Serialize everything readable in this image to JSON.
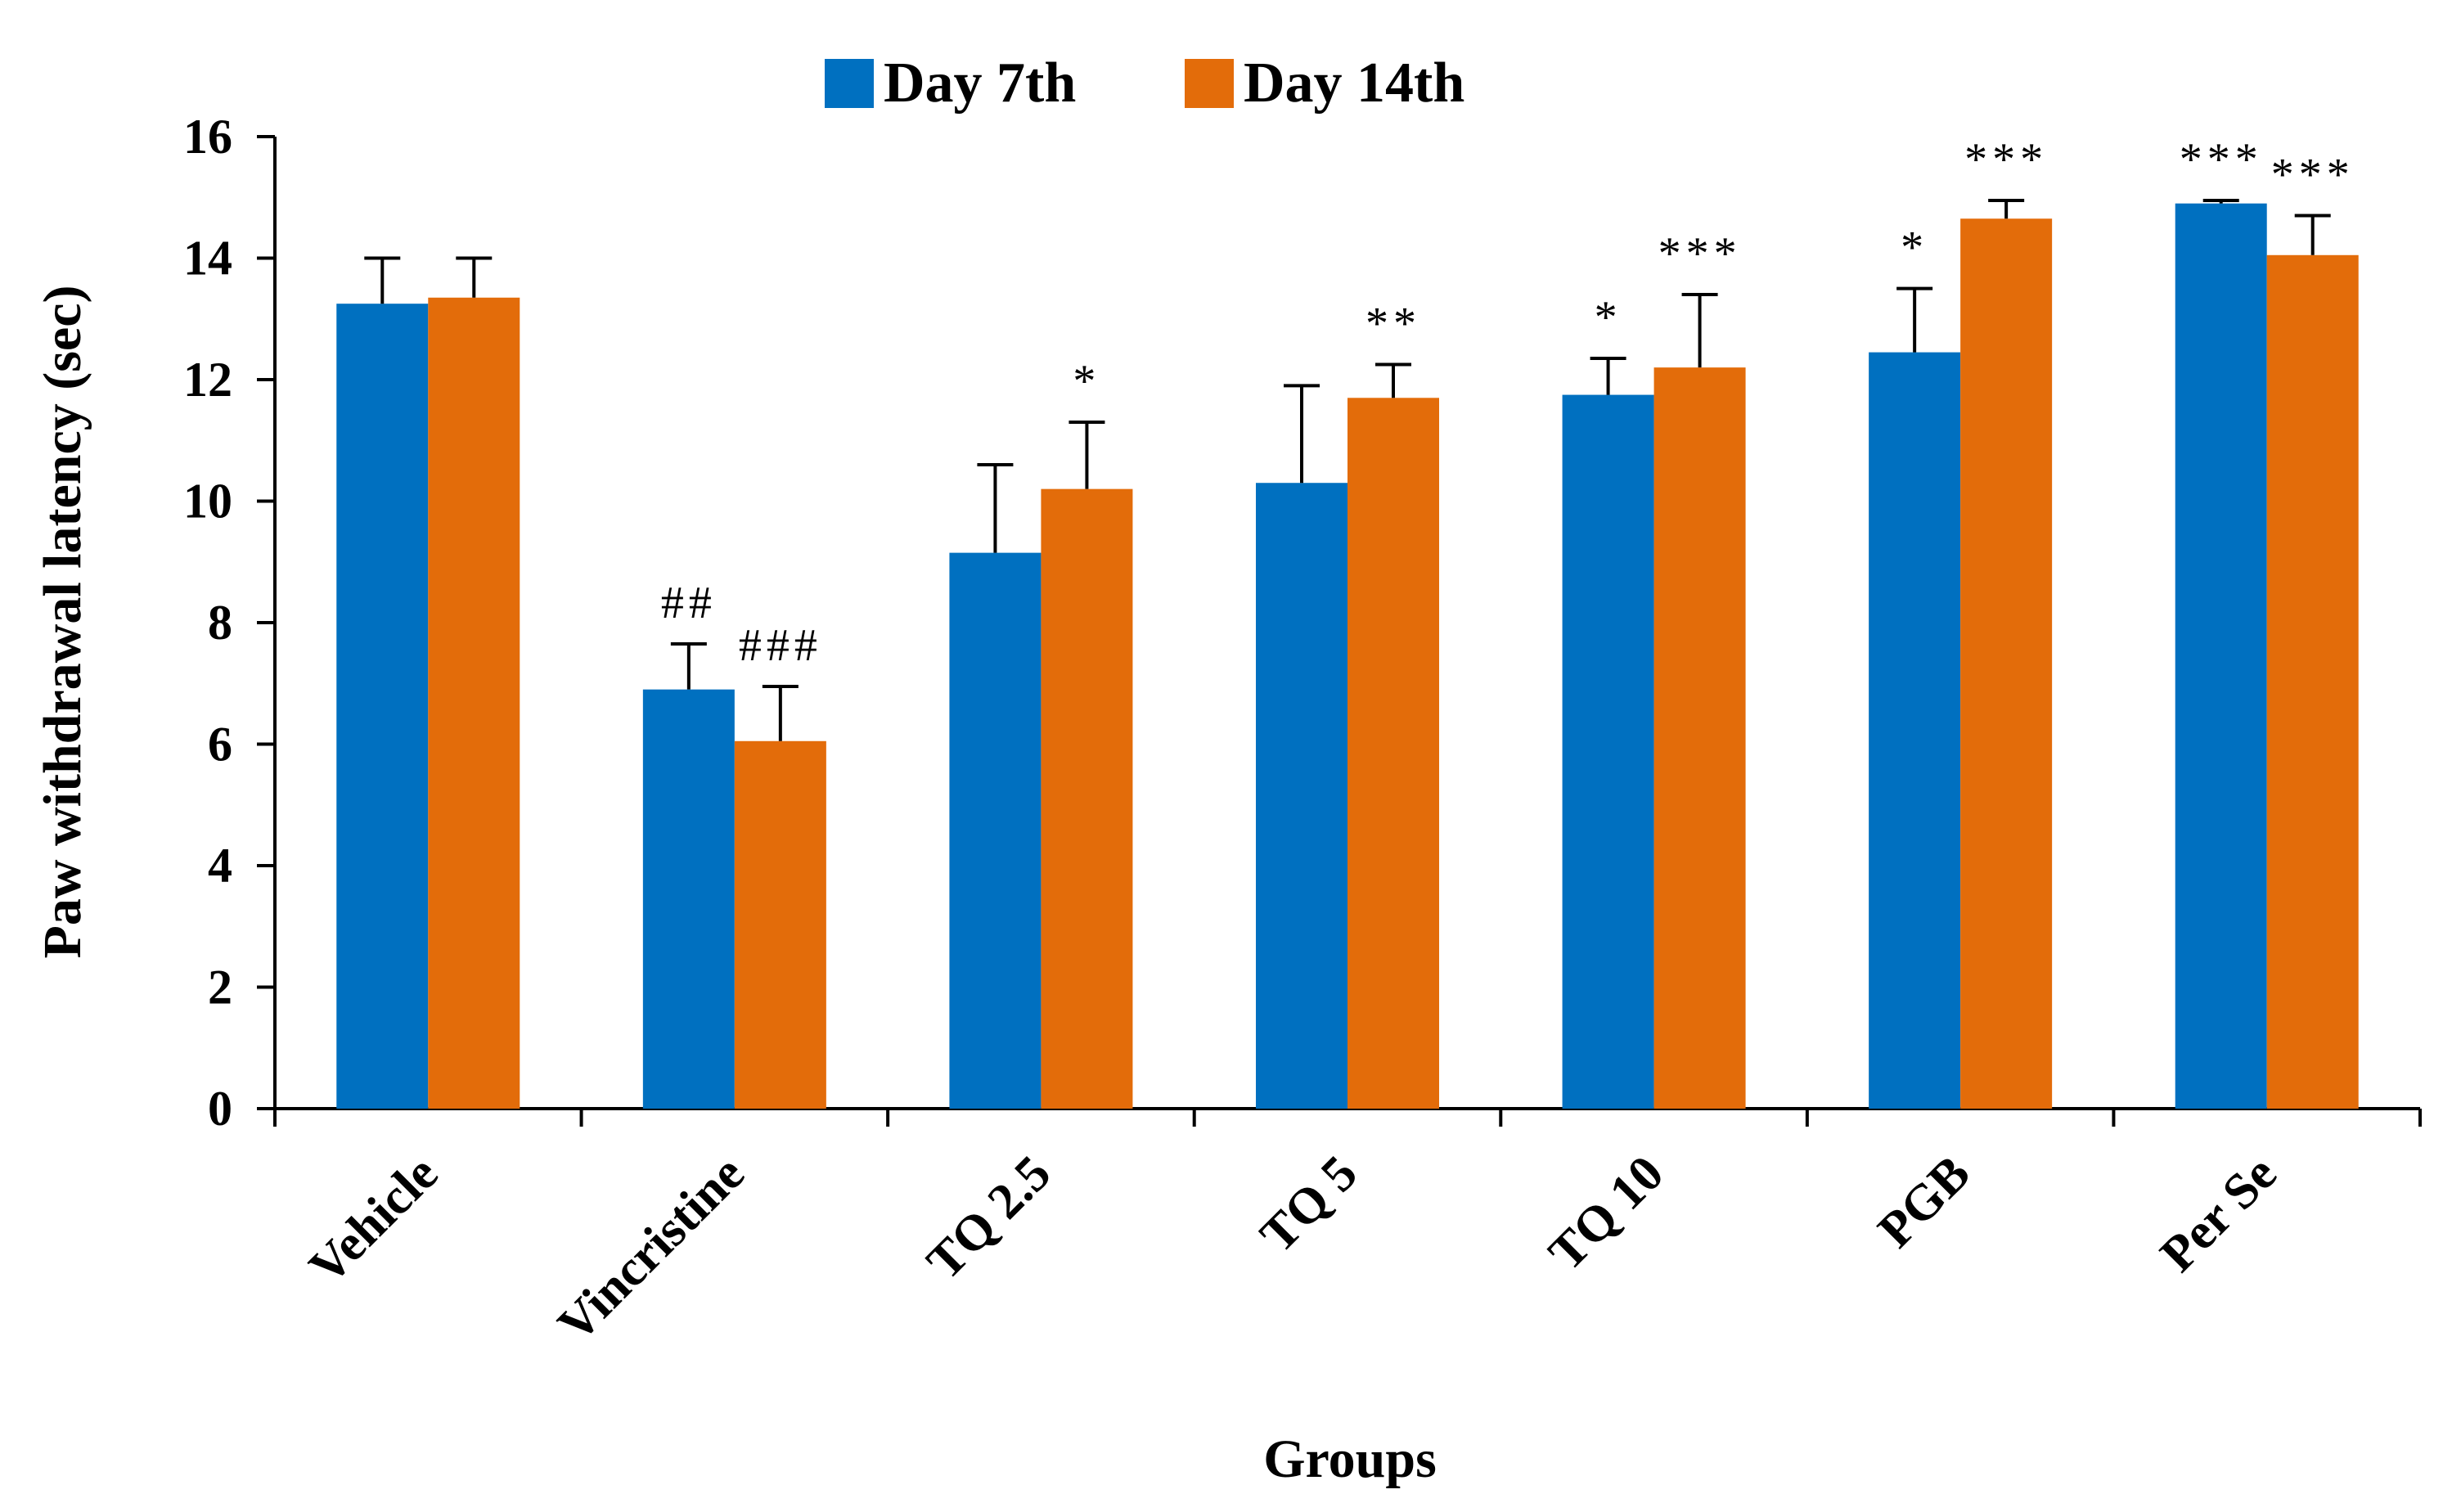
{
  "chart_data": {
    "type": "bar",
    "title": "",
    "xlabel": "Groups",
    "ylabel": "Paw withdrawal latency (sec)",
    "ylim": [
      0,
      16
    ],
    "yticks": [
      0,
      2,
      4,
      6,
      8,
      10,
      12,
      14,
      16
    ],
    "grid": false,
    "legend_position": "top-center",
    "categories": [
      "Vehicle",
      "Vincristine",
      "TQ 2.5",
      "TQ 5",
      "TQ 10",
      "PGB",
      "Per Se"
    ],
    "series": [
      {
        "name": "Day 7th",
        "color": "#0070C0",
        "values": [
          13.25,
          6.9,
          9.15,
          10.3,
          11.75,
          12.45,
          14.9
        ],
        "errors": [
          0.75,
          0.75,
          1.45,
          1.6,
          0.6,
          1.05,
          0.05
        ],
        "annotations": [
          "",
          "##",
          "",
          "",
          "*",
          "*",
          "***"
        ]
      },
      {
        "name": "Day 14th",
        "color": "#E36C0A",
        "values": [
          13.35,
          6.05,
          10.2,
          11.7,
          12.2,
          14.65,
          14.05
        ],
        "errors": [
          0.65,
          0.9,
          1.1,
          0.55,
          1.2,
          0.3,
          0.65
        ],
        "annotations": [
          "",
          "###",
          "*",
          "**",
          "***",
          "***",
          "***"
        ]
      }
    ]
  }
}
